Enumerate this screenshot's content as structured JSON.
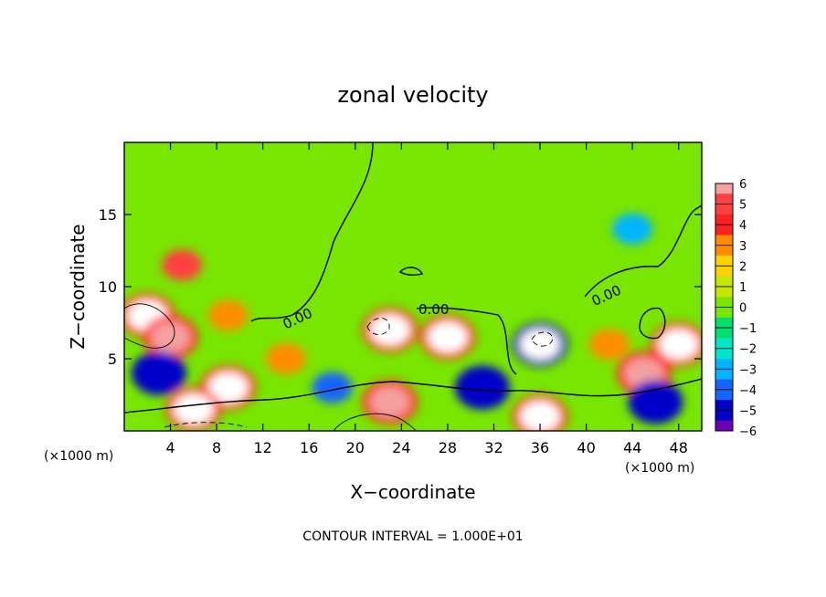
{
  "chart_data": {
    "type": "heatmap",
    "title": "zonal velocity",
    "xlabel": "X−coordinate",
    "ylabel": "Z−coordinate",
    "x_unit_left": "(×1000 m)",
    "x_unit_right": "(×1000 m)",
    "footer": "CONTOUR INTERVAL = 1.000E+01",
    "xlim": [
      0,
      50
    ],
    "ylim": [
      0,
      20
    ],
    "x_ticks": [
      "4",
      "8",
      "12",
      "16",
      "20",
      "24",
      "28",
      "32",
      "36",
      "40",
      "44",
      "48"
    ],
    "y_ticks": [
      "5",
      "10",
      "15"
    ],
    "contour_labels": [
      "0.00",
      "0.00",
      "0.00"
    ],
    "colorbar": {
      "ticks": [
        "6",
        "5",
        "4",
        "3",
        "2",
        "1",
        "0",
        "−1",
        "−2",
        "−3",
        "−4",
        "−5",
        "−6"
      ],
      "levels": [
        {
          "v": 6,
          "color": "#f4a0a0"
        },
        {
          "v": 5,
          "color": "#ff4040"
        },
        {
          "v": 4,
          "color": "#ff2020"
        },
        {
          "v": 3,
          "color": "#ff8c00"
        },
        {
          "v": 2,
          "color": "#ffd200"
        },
        {
          "v": 1,
          "color": "#c8e600"
        },
        {
          "v": 0,
          "color": "#78e600"
        },
        {
          "v": -1,
          "color": "#00e06e"
        },
        {
          "v": -2,
          "color": "#00e6c8"
        },
        {
          "v": -3,
          "color": "#00b4ff"
        },
        {
          "v": -4,
          "color": "#1464ff"
        },
        {
          "v": -5,
          "color": "#0000c8"
        },
        {
          "v": -6,
          "color": "#6e00b4"
        }
      ],
      "above_color": "#ffffff",
      "background_color": "#78e600"
    },
    "features": [
      {
        "x": 5,
        "z": 11.5,
        "value": 4.5
      },
      {
        "x": 9,
        "z": 8,
        "value": 3
      },
      {
        "x": 2,
        "z": 8,
        "value": 7
      },
      {
        "x": 4,
        "z": 6.5,
        "value": 6
      },
      {
        "x": 9,
        "z": 3,
        "value": 7
      },
      {
        "x": 3,
        "z": 4,
        "value": -5
      },
      {
        "x": 6,
        "z": 1.5,
        "value": 7
      },
      {
        "x": 14,
        "z": 5,
        "value": 3
      },
      {
        "x": 18,
        "z": 3,
        "value": -4
      },
      {
        "x": 23,
        "z": 7,
        "value": 7
      },
      {
        "x": 23,
        "z": 2,
        "value": 6
      },
      {
        "x": 28,
        "z": 6.5,
        "value": 7
      },
      {
        "x": 31,
        "z": 3,
        "value": -5
      },
      {
        "x": 36,
        "z": 6,
        "value": -7
      },
      {
        "x": 36,
        "z": 1,
        "value": 7
      },
      {
        "x": 44,
        "z": 14,
        "value": -3
      },
      {
        "x": 42,
        "z": 6,
        "value": 3
      },
      {
        "x": 45,
        "z": 4,
        "value": 6
      },
      {
        "x": 48,
        "z": 6,
        "value": 7
      },
      {
        "x": 46,
        "z": 2,
        "value": -5
      }
    ]
  }
}
